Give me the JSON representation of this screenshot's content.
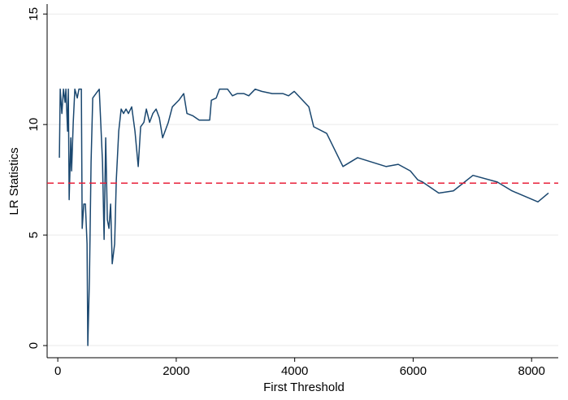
{
  "chart_data": {
    "type": "line",
    "xlabel": "First Threshold",
    "ylabel": "LR Statistics",
    "xlim": [
      -180,
      8450
    ],
    "ylim": [
      -0.55,
      15.45
    ],
    "xticks": [
      0,
      2000,
      4000,
      6000,
      8000
    ],
    "yticks": [
      0,
      5,
      10,
      15
    ],
    "grid": true,
    "reference_line": {
      "value": 7.35,
      "color": "#e8203a"
    },
    "series": [
      {
        "color": "#1a476f",
        "x": [
          27,
          41,
          69,
          96,
          123,
          137,
          165,
          178,
          192,
          220,
          233,
          261,
          288,
          329,
          357,
          398,
          412,
          439,
          466,
          494,
          507,
          535,
          562,
          590,
          645,
          700,
          755,
          782,
          809,
          837,
          864,
          892,
          919,
          960,
          988,
          1029,
          1070,
          1111,
          1152,
          1193,
          1248,
          1303,
          1358,
          1399,
          1454,
          1495,
          1550,
          1605,
          1660,
          1715,
          1770,
          1866,
          1934,
          2044,
          2126,
          2181,
          2277,
          2387,
          2565,
          2593,
          2675,
          2730,
          2867,
          2949,
          3032,
          3141,
          3224,
          3333,
          3443,
          3621,
          3800,
          3896,
          3992,
          4239,
          4321,
          4540,
          4815,
          5062,
          5542,
          5748,
          5953,
          6077,
          6159,
          6433,
          6680,
          7010,
          7421,
          7668,
          8107,
          8285
        ],
        "values": [
          8.5,
          11.6,
          10.5,
          11.6,
          11.0,
          11.6,
          9.7,
          11.6,
          6.6,
          9.4,
          7.9,
          10.1,
          11.6,
          11.2,
          11.6,
          11.6,
          5.3,
          6.4,
          6.4,
          4.6,
          0,
          3.1,
          8.3,
          11.2,
          11.4,
          11.6,
          8.3,
          4.8,
          9.4,
          5.7,
          5.3,
          6.4,
          3.7,
          4.6,
          7.5,
          9.7,
          10.7,
          10.5,
          10.7,
          10.5,
          10.8,
          9.7,
          8.1,
          9.9,
          10.1,
          10.7,
          10.1,
          10.5,
          10.7,
          10.3,
          9.4,
          10.1,
          10.8,
          11.1,
          11.4,
          10.5,
          10.4,
          10.2,
          10.2,
          11.1,
          11.2,
          11.6,
          11.6,
          11.3,
          11.4,
          11.4,
          11.3,
          11.6,
          11.5,
          11.4,
          11.4,
          11.3,
          11.5,
          10.8,
          9.9,
          9.6,
          8.1,
          8.5,
          8.1,
          8.2,
          7.9,
          7.5,
          7.4,
          6.9,
          7.0,
          7.7,
          7.4,
          7.0,
          6.5,
          6.9
        ]
      }
    ]
  }
}
